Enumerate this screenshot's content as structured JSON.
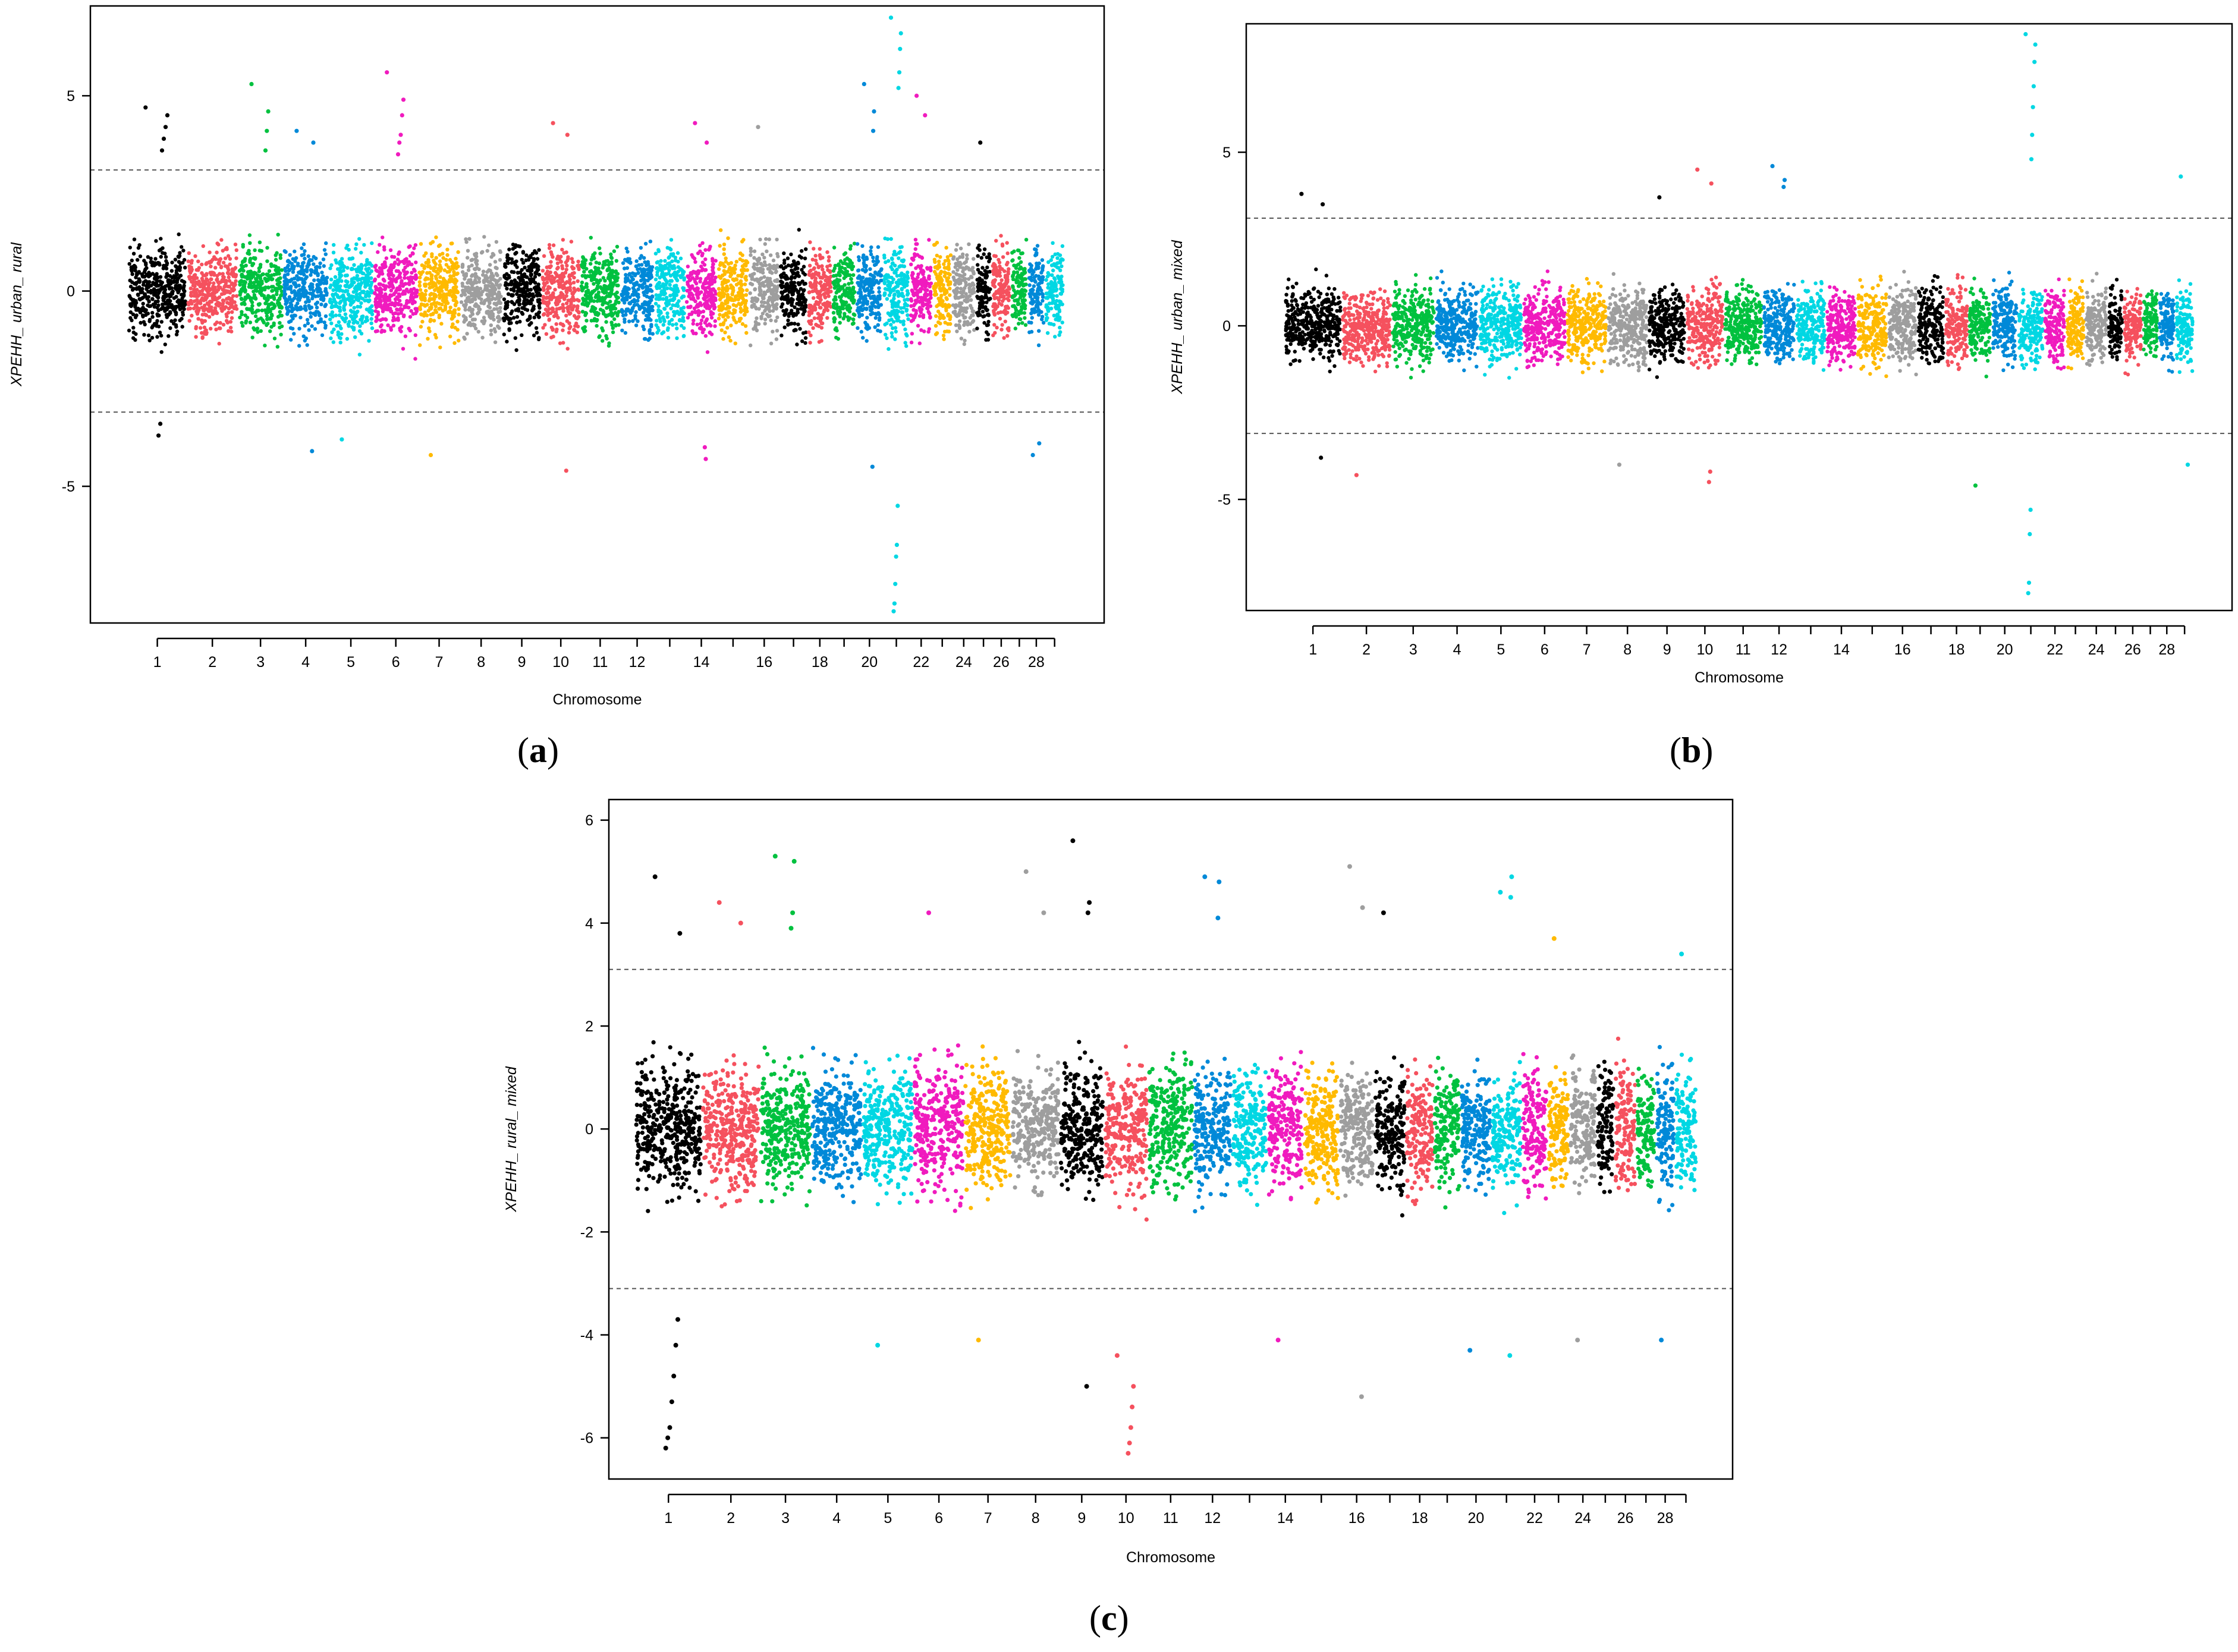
{
  "palette": [
    "#000000",
    "#F5515E",
    "#00C13F",
    "#0089D8",
    "#00D7E3",
    "#F01BBE",
    "#FFBA00",
    "#9E9E9E"
  ],
  "chart_data": [
    {
      "type": "scatter",
      "panel_label": "(a)",
      "panel_letter": "a",
      "ylabel": "XPEHH_ urban_ rural",
      "xlabel": "Chromosome",
      "ylim": [
        -8.5,
        7.3
      ],
      "yticks": [
        -5,
        0,
        5
      ],
      "threshold": [
        3.1,
        -3.1
      ],
      "chromosomes": [
        1,
        2,
        3,
        4,
        5,
        6,
        7,
        8,
        9,
        10,
        11,
        12,
        13,
        14,
        15,
        16,
        17,
        18,
        19,
        20,
        21,
        22,
        23,
        24,
        25,
        26,
        27,
        28,
        29
      ],
      "x_tick_labels": [
        "1",
        "2",
        "3",
        "4",
        "5",
        "6",
        "7",
        "8",
        "9",
        "10",
        "11",
        "12",
        "14",
        "16",
        "18",
        "20",
        "22",
        "24",
        "26",
        "28"
      ],
      "chrom_lengths": [
        158,
        137,
        121,
        121,
        121,
        120,
        112,
        113,
        105,
        104,
        107,
        91,
        84,
        85,
        85,
        82,
        75,
        66,
        64,
        72,
        72,
        61,
        52,
        63,
        43,
        52,
        45,
        46,
        52
      ],
      "spread": 1.0,
      "outliers": [
        {
          "chr": 1,
          "values": [
            4.7,
            4.5,
            4.2,
            3.9,
            3.6,
            -3.4,
            -3.7
          ]
        },
        {
          "chr": 3,
          "values": [
            5.3,
            4.6,
            4.1,
            3.6
          ]
        },
        {
          "chr": 4,
          "values": [
            4.1,
            3.8,
            -4.1
          ]
        },
        {
          "chr": 5,
          "values": [
            -3.8
          ]
        },
        {
          "chr": 6,
          "values": [
            5.6,
            4.9,
            4.5,
            4.0,
            3.8,
            3.5
          ]
        },
        {
          "chr": 7,
          "values": [
            -4.2
          ]
        },
        {
          "chr": 10,
          "values": [
            4.3,
            4.0,
            -4.6
          ]
        },
        {
          "chr": 14,
          "values": [
            4.3,
            3.8,
            -4.3,
            -4.0
          ]
        },
        {
          "chr": 16,
          "values": [
            4.2
          ]
        },
        {
          "chr": 20,
          "values": [
            5.3,
            4.6,
            4.1,
            -4.5
          ]
        },
        {
          "chr": 21,
          "values": [
            7.0,
            6.6,
            6.2,
            5.6,
            5.2,
            -5.5,
            -6.5,
            -6.8,
            -7.5,
            -8.0,
            -8.2
          ]
        },
        {
          "chr": 22,
          "values": [
            5.0,
            4.5
          ]
        },
        {
          "chr": 25,
          "values": [
            3.8
          ]
        },
        {
          "chr": 28,
          "values": [
            -4.2,
            -3.9
          ]
        }
      ]
    },
    {
      "type": "scatter",
      "panel_label": "(b)",
      "panel_letter": "b",
      "ylabel": "XPEHH_ urban_ mixed",
      "xlabel": "Chromosome",
      "ylim": [
        -8.2,
        8.7
      ],
      "yticks": [
        -5,
        0,
        5
      ],
      "threshold": [
        3.1,
        -3.1
      ],
      "chromosomes": [
        1,
        2,
        3,
        4,
        5,
        6,
        7,
        8,
        9,
        10,
        11,
        12,
        13,
        14,
        15,
        16,
        17,
        18,
        19,
        20,
        21,
        22,
        23,
        24,
        25,
        26,
        27,
        28,
        29
      ],
      "x_tick_labels": [
        "1",
        "2",
        "3",
        "4",
        "5",
        "6",
        "7",
        "8",
        "9",
        "10",
        "11",
        "12",
        "14",
        "16",
        "18",
        "20",
        "22",
        "24",
        "26",
        "28"
      ],
      "chrom_lengths": [
        158,
        137,
        121,
        121,
        121,
        120,
        112,
        113,
        105,
        104,
        107,
        91,
        84,
        85,
        85,
        82,
        75,
        66,
        64,
        72,
        72,
        61,
        52,
        63,
        43,
        52,
        45,
        46,
        52
      ],
      "spread": 0.95,
      "outliers": [
        {
          "chr": 1,
          "values": [
            3.8,
            3.5,
            -3.8
          ]
        },
        {
          "chr": 2,
          "values": [
            -4.3
          ]
        },
        {
          "chr": 8,
          "values": [
            -4.0
          ]
        },
        {
          "chr": 9,
          "values": [
            3.7
          ]
        },
        {
          "chr": 10,
          "values": [
            4.5,
            4.1,
            -4.2,
            -4.5
          ]
        },
        {
          "chr": 12,
          "values": [
            4.6,
            4.2,
            4.0
          ]
        },
        {
          "chr": 19,
          "values": [
            -4.6
          ]
        },
        {
          "chr": 21,
          "values": [
            8.4,
            8.1,
            7.6,
            6.9,
            6.3,
            5.5,
            4.8,
            -5.3,
            -6.0,
            -7.4,
            -7.7
          ]
        },
        {
          "chr": 29,
          "values": [
            4.3,
            -4.0
          ]
        }
      ]
    },
    {
      "type": "scatter",
      "panel_label": "(c)",
      "panel_letter": "c",
      "ylabel": "XPEHH_ rural_ mixed",
      "xlabel": "Chromosome",
      "ylim": [
        -6.8,
        6.4
      ],
      "yticks": [
        -6,
        -4,
        -2,
        0,
        2,
        4,
        6
      ],
      "threshold": [
        3.1,
        -3.1
      ],
      "chromosomes": [
        1,
        2,
        3,
        4,
        5,
        6,
        7,
        8,
        9,
        10,
        11,
        12,
        13,
        14,
        15,
        16,
        17,
        18,
        19,
        20,
        21,
        22,
        23,
        24,
        25,
        26,
        27,
        28,
        29
      ],
      "x_tick_labels": [
        "1",
        "2",
        "3",
        "4",
        "5",
        "6",
        "7",
        "8",
        "9",
        "10",
        "11",
        "12",
        "14",
        "16",
        "18",
        "20",
        "22",
        "24",
        "26",
        "28"
      ],
      "chrom_lengths": [
        158,
        137,
        121,
        121,
        121,
        120,
        112,
        113,
        105,
        104,
        107,
        91,
        84,
        85,
        85,
        82,
        75,
        66,
        64,
        72,
        72,
        61,
        52,
        63,
        43,
        52,
        45,
        46,
        52
      ],
      "spread": 1.05,
      "outliers": [
        {
          "chr": 1,
          "values": [
            4.9,
            3.8,
            -3.7,
            -4.2,
            -4.8,
            -5.3,
            -5.8,
            -6.0,
            -6.2
          ]
        },
        {
          "chr": 2,
          "values": [
            4.4,
            4.0
          ]
        },
        {
          "chr": 3,
          "values": [
            5.3,
            5.2,
            4.2,
            3.9
          ]
        },
        {
          "chr": 5,
          "values": [
            -4.2
          ]
        },
        {
          "chr": 6,
          "values": [
            4.2
          ]
        },
        {
          "chr": 7,
          "values": [
            -4.1
          ]
        },
        {
          "chr": 8,
          "values": [
            5.0,
            4.2
          ]
        },
        {
          "chr": 9,
          "values": [
            5.6,
            4.4,
            4.2,
            -5.0
          ]
        },
        {
          "chr": 10,
          "values": [
            -4.4,
            -5.0,
            -5.4,
            -5.8,
            -6.1,
            -6.3
          ]
        },
        {
          "chr": 12,
          "values": [
            4.9,
            4.8,
            4.1
          ]
        },
        {
          "chr": 14,
          "values": [
            -4.1
          ]
        },
        {
          "chr": 16,
          "values": [
            5.1,
            4.3,
            -5.2
          ]
        },
        {
          "chr": 17,
          "values": [
            4.2
          ]
        },
        {
          "chr": 20,
          "values": [
            -4.3
          ]
        },
        {
          "chr": 21,
          "values": [
            4.6,
            4.9,
            4.5,
            -4.4
          ]
        },
        {
          "chr": 23,
          "values": [
            3.7
          ]
        },
        {
          "chr": 24,
          "values": [
            -4.1
          ]
        },
        {
          "chr": 28,
          "values": [
            -4.1
          ]
        },
        {
          "chr": 29,
          "values": [
            3.4
          ]
        }
      ]
    }
  ]
}
